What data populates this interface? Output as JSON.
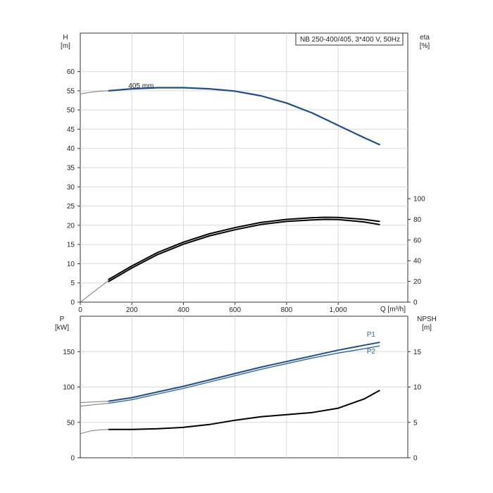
{
  "chart_data": [
    {
      "type": "line",
      "panel": "head-efficiency",
      "legend": "NB 250-400/405, 3*400 V, 50Hz",
      "xlabel": "Q [m³/h]",
      "xlim": [
        0,
        1270
      ],
      "xticks": [
        0,
        200,
        400,
        600,
        800,
        1000
      ],
      "xtick_labels": [
        "0",
        "200",
        "400",
        "600",
        "800",
        "1,000"
      ],
      "left_axis": {
        "title": "H",
        "unit": "[m]",
        "ylim": [
          0,
          70
        ],
        "ticks": [
          0,
          5,
          10,
          15,
          20,
          25,
          30,
          35,
          40,
          45,
          50,
          55,
          60
        ]
      },
      "right_axis": {
        "title": "eta",
        "unit": "[%]",
        "ylim": [
          0,
          260
        ],
        "ticks": [
          0,
          20,
          40,
          60,
          80,
          100
        ]
      },
      "grid": true,
      "annotations": [
        {
          "text": "405 mm",
          "x": 110,
          "y": 55.3
        }
      ],
      "series": [
        {
          "role": "head",
          "axis": "left",
          "color": "#1f4e8c",
          "x": [
            110,
            200,
            300,
            400,
            500,
            600,
            700,
            800,
            900,
            1000,
            1100,
            1160
          ],
          "y": [
            55.0,
            55.5,
            55.8,
            55.8,
            55.5,
            54.9,
            53.7,
            51.8,
            49.2,
            46.0,
            42.8,
            41.0
          ]
        },
        {
          "role": "head-extension",
          "axis": "left",
          "color": "#777777",
          "x": [
            0,
            40,
            80,
            110
          ],
          "y": [
            54.2,
            54.6,
            54.9,
            55.0
          ]
        },
        {
          "role": "efficiency-upper",
          "axis": "right",
          "color": "#000000",
          "x": [
            110,
            200,
            300,
            400,
            500,
            600,
            700,
            800,
            900,
            950,
            1000,
            1100,
            1160
          ],
          "y": [
            22,
            35,
            48,
            58,
            66,
            72,
            77,
            80,
            81.6,
            82,
            81.8,
            80,
            78
          ]
        },
        {
          "role": "efficiency-lower",
          "axis": "right",
          "color": "#000000",
          "x": [
            110,
            200,
            300,
            400,
            500,
            600,
            700,
            800,
            900,
            950,
            1000,
            1100,
            1160
          ],
          "y": [
            20,
            33,
            46,
            56,
            64,
            70,
            75,
            78,
            79.5,
            80,
            79.8,
            77.5,
            75
          ]
        },
        {
          "role": "efficiency-extension",
          "axis": "right",
          "color": "#777777",
          "x": [
            0,
            110
          ],
          "y": [
            0,
            21
          ]
        }
      ]
    },
    {
      "type": "line",
      "panel": "power-npsh",
      "left_axis": {
        "title": "P",
        "unit": "[kW]",
        "ylim": [
          0,
          200
        ],
        "ticks": [
          0,
          50,
          100,
          150
        ]
      },
      "right_axis": {
        "title": "NPSH",
        "unit": "[m]",
        "ylim": [
          0,
          20
        ],
        "ticks": [
          0,
          5,
          10,
          15
        ]
      },
      "xlim": [
        0,
        1270
      ],
      "grid": true,
      "series": [
        {
          "name": "P1",
          "axis": "left",
          "color": "#1f4e8c",
          "x": [
            110,
            200,
            300,
            400,
            500,
            600,
            700,
            800,
            900,
            1000,
            1100,
            1160
          ],
          "y": [
            80,
            85,
            93,
            101,
            110,
            119,
            128,
            136,
            144,
            152,
            159,
            163
          ]
        },
        {
          "name": "P2",
          "axis": "left",
          "color": "#2f66b0",
          "x": [
            110,
            200,
            300,
            400,
            500,
            600,
            700,
            800,
            900,
            1000,
            1100,
            1160
          ],
          "y": [
            77,
            82,
            90,
            98,
            107,
            116,
            125,
            133,
            141,
            148,
            154,
            158
          ]
        },
        {
          "role": "P1-extension",
          "axis": "left",
          "color": "#777777",
          "x": [
            0,
            110
          ],
          "y": [
            78,
            80
          ]
        },
        {
          "role": "P2-extension",
          "axis": "left",
          "color": "#777777",
          "x": [
            0,
            110
          ],
          "y": [
            73,
            77
          ]
        },
        {
          "role": "npsh",
          "axis": "right",
          "color": "#000000",
          "x": [
            110,
            200,
            300,
            400,
            500,
            600,
            700,
            800,
            900,
            1000,
            1100,
            1160
          ],
          "y": [
            4.0,
            4.0,
            4.1,
            4.3,
            4.7,
            5.3,
            5.8,
            6.1,
            6.4,
            7.0,
            8.3,
            9.5
          ]
        },
        {
          "role": "npsh-extension",
          "axis": "right",
          "color": "#777777",
          "x": [
            0,
            40,
            80,
            110
          ],
          "y": [
            3.4,
            3.8,
            3.95,
            4.0
          ]
        }
      ]
    }
  ]
}
